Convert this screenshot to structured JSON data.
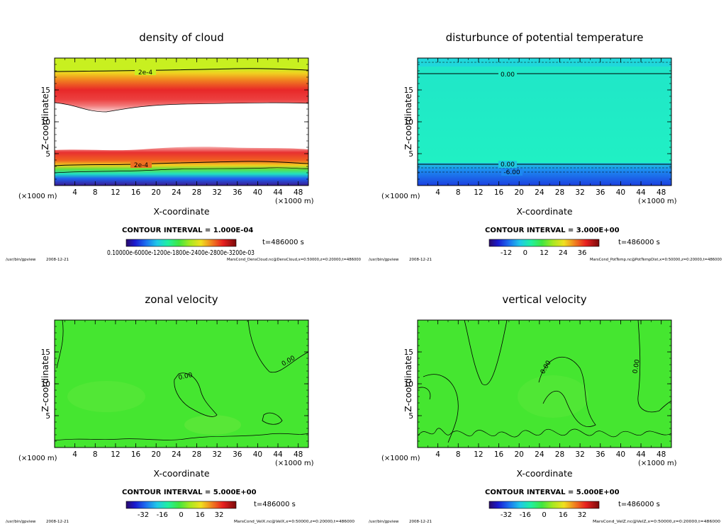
{
  "chart_data": [
    {
      "type": "heatmap",
      "title": "density of cloud",
      "xlabel": "X-coordinate",
      "ylabel": "Z-coordinate",
      "x_unit_label": "(×1000 m)",
      "xlim": [
        0,
        50
      ],
      "ylim": [
        0,
        20
      ],
      "x_ticks": [
        "4",
        "8",
        "12",
        "16",
        "20",
        "24",
        "28",
        "32",
        "36",
        "40",
        "44",
        "48"
      ],
      "y_ticks": [
        "5",
        "10",
        "15"
      ],
      "contour_labels": [
        "2e-4",
        "2e-4"
      ],
      "contour_interval": "CONTOUR INTERVAL = 1.000E-04",
      "time": "t=486000 s",
      "colorbar_labels": "0.10000e-6000e-1200e-1800e-2400e-2800e-3200e-03",
      "footer_left": "/usr/bin/gpview",
      "footer_date": "2008-12-21",
      "footer_right": "MarsCond_DensCloud.nc@DensCloud,x=0:50000,z=0:20000,t=486000"
    },
    {
      "type": "heatmap",
      "title": "disturbunce of potential temperature",
      "xlabel": "X-coordinate",
      "ylabel": "Z-coordinate",
      "x_unit_label": "(×1000 m)",
      "xlim": [
        0,
        50
      ],
      "ylim": [
        0,
        20
      ],
      "x_ticks": [
        "4",
        "8",
        "12",
        "16",
        "20",
        "24",
        "28",
        "32",
        "36",
        "40",
        "44",
        "48"
      ],
      "y_ticks": [
        "5",
        "10",
        "15"
      ],
      "contour_labels": [
        "0.00",
        "0.00",
        "-6.00"
      ],
      "contour_interval": "CONTOUR INTERVAL = 3.000E+00",
      "time": "t=486000 s",
      "colorbar_ticks": [
        "-12",
        "0",
        "12",
        "24",
        "36"
      ],
      "footer_left": "/usr/bin/gpview",
      "footer_date": "2008-12-21",
      "footer_right": "MarsCond_PotTemp.nc@PotTempDist,x=0:50000,z=0:20000,t=486000"
    },
    {
      "type": "heatmap",
      "title": "zonal velocity",
      "xlabel": "X-coordinate",
      "ylabel": "Z-coordinate",
      "x_unit_label": "(×1000 m)",
      "xlim": [
        0,
        50
      ],
      "ylim": [
        0,
        20
      ],
      "x_ticks": [
        "4",
        "8",
        "12",
        "16",
        "20",
        "24",
        "28",
        "32",
        "36",
        "40",
        "44",
        "48"
      ],
      "y_ticks": [
        "5",
        "10",
        "15"
      ],
      "contour_labels": [
        "0.00",
        "0.00"
      ],
      "contour_interval": "CONTOUR INTERVAL = 5.000E+00",
      "time": "t=486000 s",
      "colorbar_ticks": [
        "-32",
        "-16",
        "0",
        "16",
        "32"
      ],
      "footer_left": "/usr/bin/gpview",
      "footer_date": "2008-12-21",
      "footer_right": "MarsCond_VelX.nc@VelX,x=0:50000,z=0:20000,t=486000"
    },
    {
      "type": "heatmap",
      "title": "vertical velocity",
      "xlabel": "X-coordinate",
      "ylabel": "Z-coordinate",
      "x_unit_label": "(×1000 m)",
      "xlim": [
        0,
        50
      ],
      "ylim": [
        0,
        20
      ],
      "x_ticks": [
        "4",
        "8",
        "12",
        "16",
        "20",
        "24",
        "28",
        "32",
        "36",
        "40",
        "44",
        "48"
      ],
      "y_ticks": [
        "5",
        "10",
        "15"
      ],
      "contour_labels": [
        "0.00",
        "0.00"
      ],
      "contour_interval": "CONTOUR INTERVAL = 5.000E+00",
      "time": "t=486000 s",
      "colorbar_ticks": [
        "-32",
        "-16",
        "0",
        "16",
        "32"
      ],
      "footer_left": "/usr/bin/gpview",
      "footer_date": "2008-12-21",
      "footer_right": "MarsCond_VelZ.nc@VelZ,x=0:50000,z=0:20000,t=486000"
    }
  ],
  "colors": {
    "field_green": "#45e630",
    "field_cyan": "#20f0c4",
    "field_blue": "#1c50e8",
    "frame": "#000000"
  }
}
